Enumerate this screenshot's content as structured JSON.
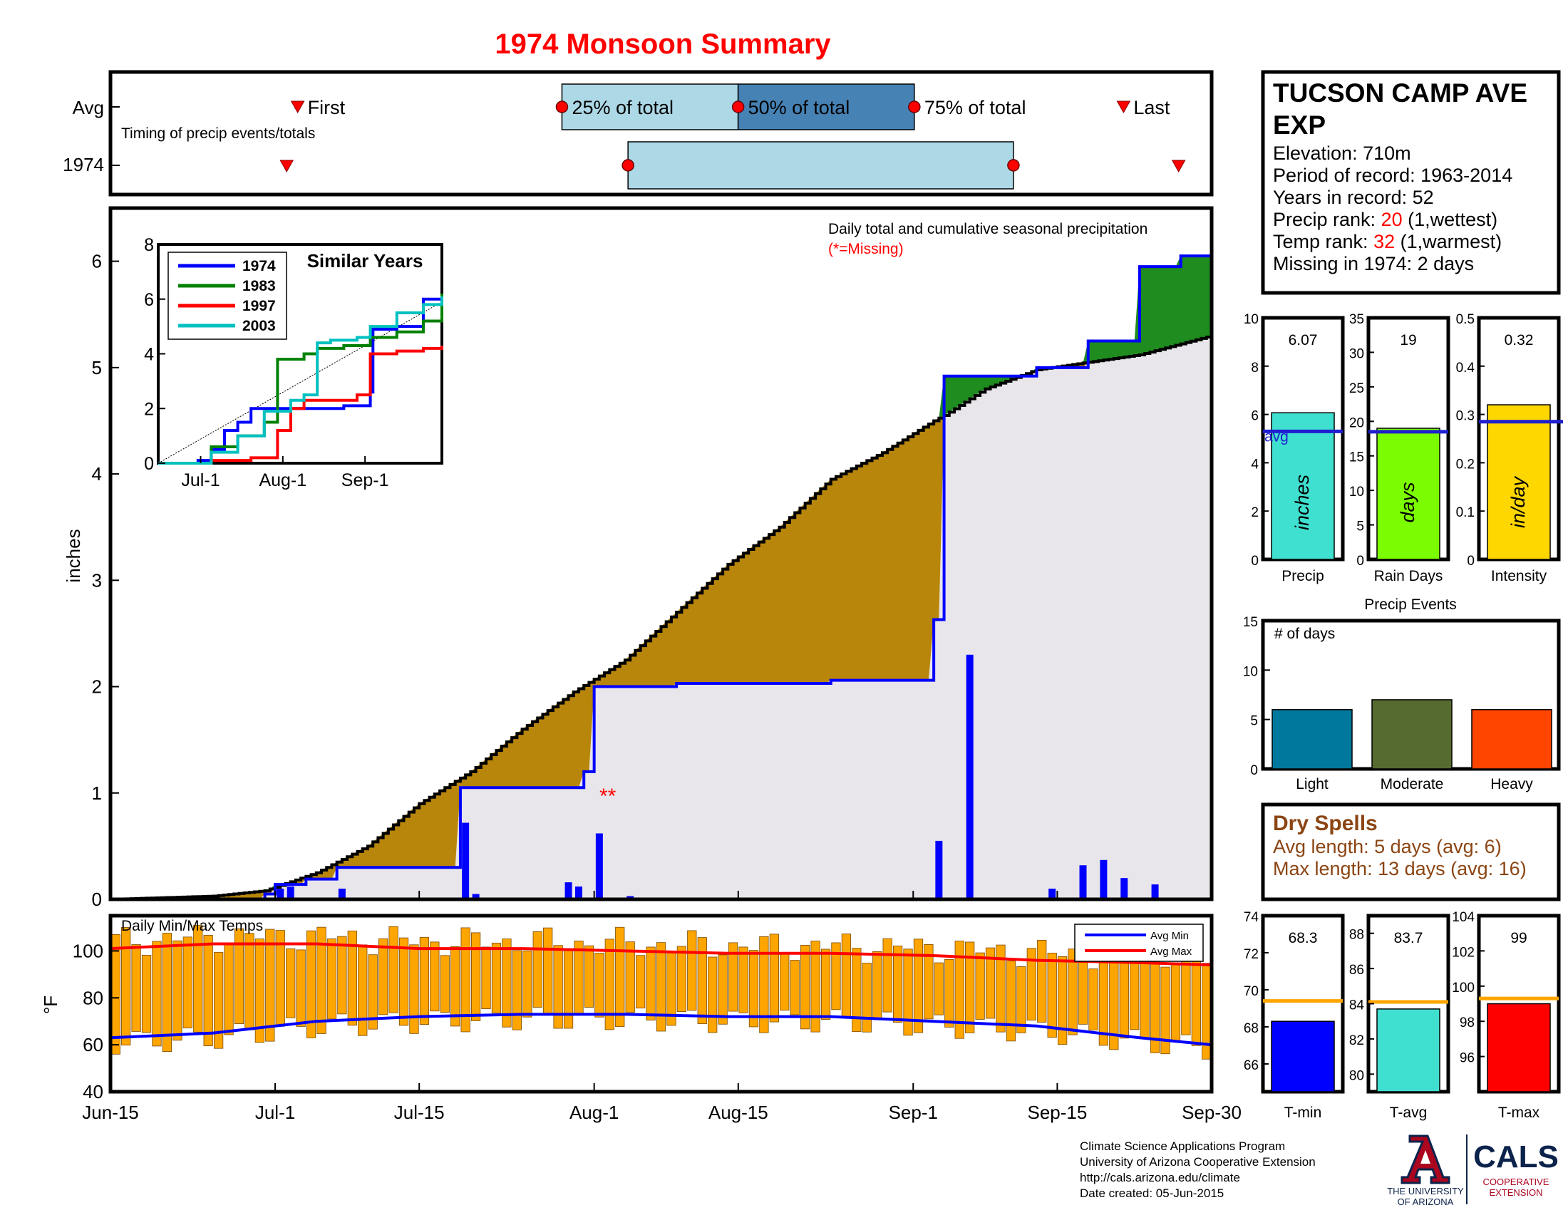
{
  "title": "1974 Monsoon Summary",
  "timing": {
    "label": "Timing of precip events/totals",
    "row_avg": "Avg",
    "row_year": "1974",
    "first_label": "First",
    "last_label": "Last",
    "q25_label": "25% of total",
    "q50_label": "50% of total",
    "q75_label": "75% of total",
    "avg": {
      "first": 17,
      "q25": 41,
      "q50": 57,
      "q75": 73,
      "last": 92
    },
    "year": {
      "first": 16,
      "q25": 47,
      "q75": 82,
      "last": 97
    }
  },
  "station": {
    "name_line1": "TUCSON CAMP AVE",
    "name_line2": "EXP",
    "elevation": "Elevation: 710m",
    "period": "Period of record: 1963-2014",
    "years": "Years in record: 52",
    "precip_rank_label": "Precip rank: ",
    "precip_rank_value": "20",
    "precip_rank_note": " (1,wettest)",
    "temp_rank_label": "Temp rank: ",
    "temp_rank_value": "32",
    "temp_rank_note": " (1,warmest)",
    "missing": "Missing in 1974: 2 days"
  },
  "main_chart": {
    "note": "Daily total and cumulative seasonal precipitation",
    "missing_note": "(*=Missing)",
    "missing_marker": "**",
    "ylabel": "inches",
    "colors": {
      "wet_fill": "#1e8c1e",
      "dry_fill": "#b8860b",
      "cum_line": "#0000ff",
      "avg_line": "#000000",
      "bg_fill": "#e8e6ea",
      "bars": "#0000ff"
    }
  },
  "temps_chart": {
    "label": "Daily Min/Max Temps",
    "ylabel": "°F",
    "legend_min": "Avg Min",
    "legend_max": "Avg Max"
  },
  "side_bars": {
    "precip": {
      "value_label": "6.07",
      "value": 6.07,
      "avg": 5.3,
      "unit": "inches",
      "label": "Precip",
      "avg_text": "avg",
      "color": "#40e0d0",
      "ticks": [
        "0",
        "2",
        "4",
        "6",
        "8",
        "10"
      ]
    },
    "rain_days": {
      "value_label": "19",
      "value": 19,
      "avg": 18.5,
      "unit": "days",
      "label": "Rain Days",
      "color": "#7cfc00",
      "ticks": [
        "0",
        "5",
        "10",
        "15",
        "20",
        "25",
        "30",
        "35"
      ]
    },
    "intensity": {
      "value_label": "0.32",
      "value": 0.32,
      "avg": 0.285,
      "unit": "in/day",
      "label": "Intensity",
      "color": "#ffd700",
      "ticks": [
        "0",
        "0.1",
        "0.2",
        "0.3",
        "0.4",
        "0.5"
      ]
    }
  },
  "events": {
    "title": "Precip Events",
    "ylabel": "# of days",
    "ticks": [
      "0",
      "5",
      "10",
      "15"
    ],
    "categories": [
      "Light",
      "Moderate",
      "Heavy"
    ],
    "values": [
      6,
      7,
      6
    ],
    "colors": [
      "#00779c",
      "#556b2f",
      "#ff4500"
    ]
  },
  "dry_spells": {
    "title": "Dry Spells",
    "avg_line": "Avg length: 5 days (avg: 6)",
    "max_line": "Max length: 13 days (avg: 16)"
  },
  "temp_bars": {
    "tmin": {
      "value_label": "68.3",
      "value": 68.3,
      "avg": 69.4,
      "label": "T-min",
      "color": "#0000ff",
      "ticks": [
        "66",
        "68",
        "70",
        "72",
        "74"
      ],
      "range": [
        64.5,
        74
      ]
    },
    "tavg": {
      "value_label": "83.7",
      "value": 83.7,
      "avg": 84.1,
      "label": "T-avg",
      "color": "#40e0d0",
      "ticks": [
        "80",
        "82",
        "84",
        "86",
        "88"
      ],
      "range": [
        79,
        89
      ]
    },
    "tmax": {
      "value_label": "99",
      "value": 99.0,
      "avg": 99.3,
      "label": "T-max",
      "color": "#ff0000",
      "ticks": [
        "96",
        "98",
        "100",
        "102",
        "104"
      ],
      "range": [
        94,
        104
      ]
    }
  },
  "footer": {
    "line1": "Climate Science Applications Program",
    "line2": "University of Arizona Cooperative Extension",
    "line3": "http://cals.arizona.edu/climate",
    "line4": " Date created: 05-Jun-2015",
    "ua_line1": "THE UNIVERSITY",
    "ua_line2": "OF ARIZONA",
    "cals": "CALS",
    "cals_sub1": "COOPERATIVE",
    "cals_sub2": "EXTENSION"
  },
  "chart_data": [
    {
      "type": "line",
      "title": "Daily total and cumulative seasonal precipitation",
      "xlabel": "",
      "ylabel": "inches",
      "x_ticks": [
        "Jun-15",
        "Jul-1",
        "Jul-15",
        "Aug-1",
        "Aug-15",
        "Sep-1",
        "Sep-15",
        "Sep-30"
      ],
      "x_tick_days": [
        0,
        16,
        30,
        47,
        61,
        78,
        92,
        107
      ],
      "xlim": [
        0,
        107
      ],
      "ylim": [
        0,
        6.5
      ],
      "y_ticks": [
        0,
        1,
        2,
        3,
        4,
        5,
        6
      ],
      "grid": false,
      "series": [
        {
          "name": "1974",
          "x": [
            0,
            15,
            16,
            19,
            22,
            33,
            34,
            46,
            47,
            55,
            63,
            70,
            80,
            81,
            84,
            90,
            95,
            100,
            104,
            107
          ],
          "y": [
            0,
            0.05,
            0.14,
            0.19,
            0.3,
            0.3,
            1.05,
            1.2,
            2.0,
            2.03,
            2.03,
            2.06,
            2.63,
            4.92,
            4.92,
            5.0,
            5.25,
            5.95,
            6.05,
            6.07
          ]
        },
        {
          "name": "",
          "x": [
            0,
            10,
            15,
            20,
            25,
            30,
            35,
            40,
            45,
            50,
            55,
            60,
            65,
            70,
            75,
            80,
            81,
            85,
            90,
            95,
            100,
            107
          ],
          "y": [
            0,
            0.03,
            0.08,
            0.25,
            0.5,
            0.9,
            1.2,
            1.6,
            1.95,
            2.25,
            2.7,
            3.15,
            3.5,
            3.95,
            4.2,
            4.5,
            4.55,
            4.8,
            4.98,
            5.05,
            5.12,
            5.3
          ]
        }
      ],
      "bars": {
        "name": "daily precip",
        "x": [
          16,
          17,
          22,
          34,
          35,
          44,
          45,
          47,
          50,
          80,
          83,
          91,
          94,
          96,
          98,
          101
        ],
        "y": [
          0.1,
          0.12,
          0.1,
          0.72,
          0.05,
          0.16,
          0.12,
          0.62,
          0.03,
          0.55,
          2.3,
          0.1,
          0.32,
          0.37,
          0.2,
          0.14
        ]
      }
    },
    {
      "type": "line",
      "title": "Similar Years",
      "x_ticks": [
        "Jul-1",
        "Aug-1",
        "Sep-1"
      ],
      "x_tick_days": [
        16,
        47,
        78
      ],
      "xlim": [
        0,
        107
      ],
      "ylim": [
        0,
        8
      ],
      "y_ticks": [
        0,
        2,
        4,
        6,
        8
      ],
      "legend": "top-left",
      "series": [
        {
          "name": "1974",
          "color": "#0000ff",
          "x": [
            0,
            15,
            20,
            25,
            30,
            35,
            47,
            70,
            80,
            81,
            90,
            100,
            107
          ],
          "y": [
            0,
            0.1,
            0.5,
            1.2,
            1.5,
            2.0,
            2.0,
            2.1,
            2.6,
            4.9,
            5.0,
            6.0,
            6.1
          ]
        },
        {
          "name": "1983",
          "color": "#008000",
          "x": [
            0,
            20,
            30,
            40,
            45,
            55,
            60,
            70,
            80,
            90,
            100,
            107
          ],
          "y": [
            0,
            0.6,
            1.0,
            1.5,
            3.8,
            4.0,
            4.2,
            4.3,
            4.6,
            4.8,
            5.2,
            6.2
          ]
        },
        {
          "name": "1997",
          "color": "#ff0000",
          "x": [
            0,
            20,
            35,
            45,
            50,
            55,
            65,
            75,
            80,
            90,
            100,
            107
          ],
          "y": [
            0,
            0.1,
            0.2,
            1.2,
            2.0,
            2.3,
            2.3,
            2.5,
            4.0,
            4.1,
            4.2,
            4.3
          ]
        },
        {
          "name": "2003",
          "color": "#00c0c0",
          "x": [
            0,
            20,
            30,
            40,
            50,
            55,
            60,
            65,
            75,
            80,
            90,
            100,
            107
          ],
          "y": [
            0,
            0.4,
            1.0,
            1.9,
            2.3,
            2.5,
            4.4,
            4.5,
            4.6,
            5.0,
            5.5,
            5.8,
            6.1
          ]
        }
      ]
    },
    {
      "type": "bar",
      "title": "Daily Min/Max Temps",
      "ylabel": "°F",
      "ylim": [
        40,
        115
      ],
      "y_ticks": [
        40,
        60,
        80,
        100
      ],
      "series": [
        {
          "name": "Avg Min",
          "color": "#0000ff",
          "x": [
            0,
            10,
            20,
            30,
            40,
            50,
            60,
            70,
            80,
            90,
            100,
            107
          ],
          "y": [
            63,
            65,
            70,
            72,
            73,
            73,
            72,
            72,
            70,
            68,
            63,
            60
          ]
        },
        {
          "name": "Avg Max",
          "color": "#ff0000",
          "x": [
            0,
            10,
            20,
            30,
            40,
            50,
            60,
            70,
            80,
            90,
            100,
            107
          ],
          "y": [
            101,
            103,
            103,
            101,
            101,
            100,
            99,
            99,
            98,
            96,
            95,
            94
          ]
        }
      ]
    },
    {
      "type": "bar",
      "title": "Precip Events",
      "categories": [
        "Light",
        "Moderate",
        "Heavy"
      ],
      "values": [
        6,
        7,
        6
      ],
      "ylim": [
        0,
        15
      ]
    }
  ]
}
